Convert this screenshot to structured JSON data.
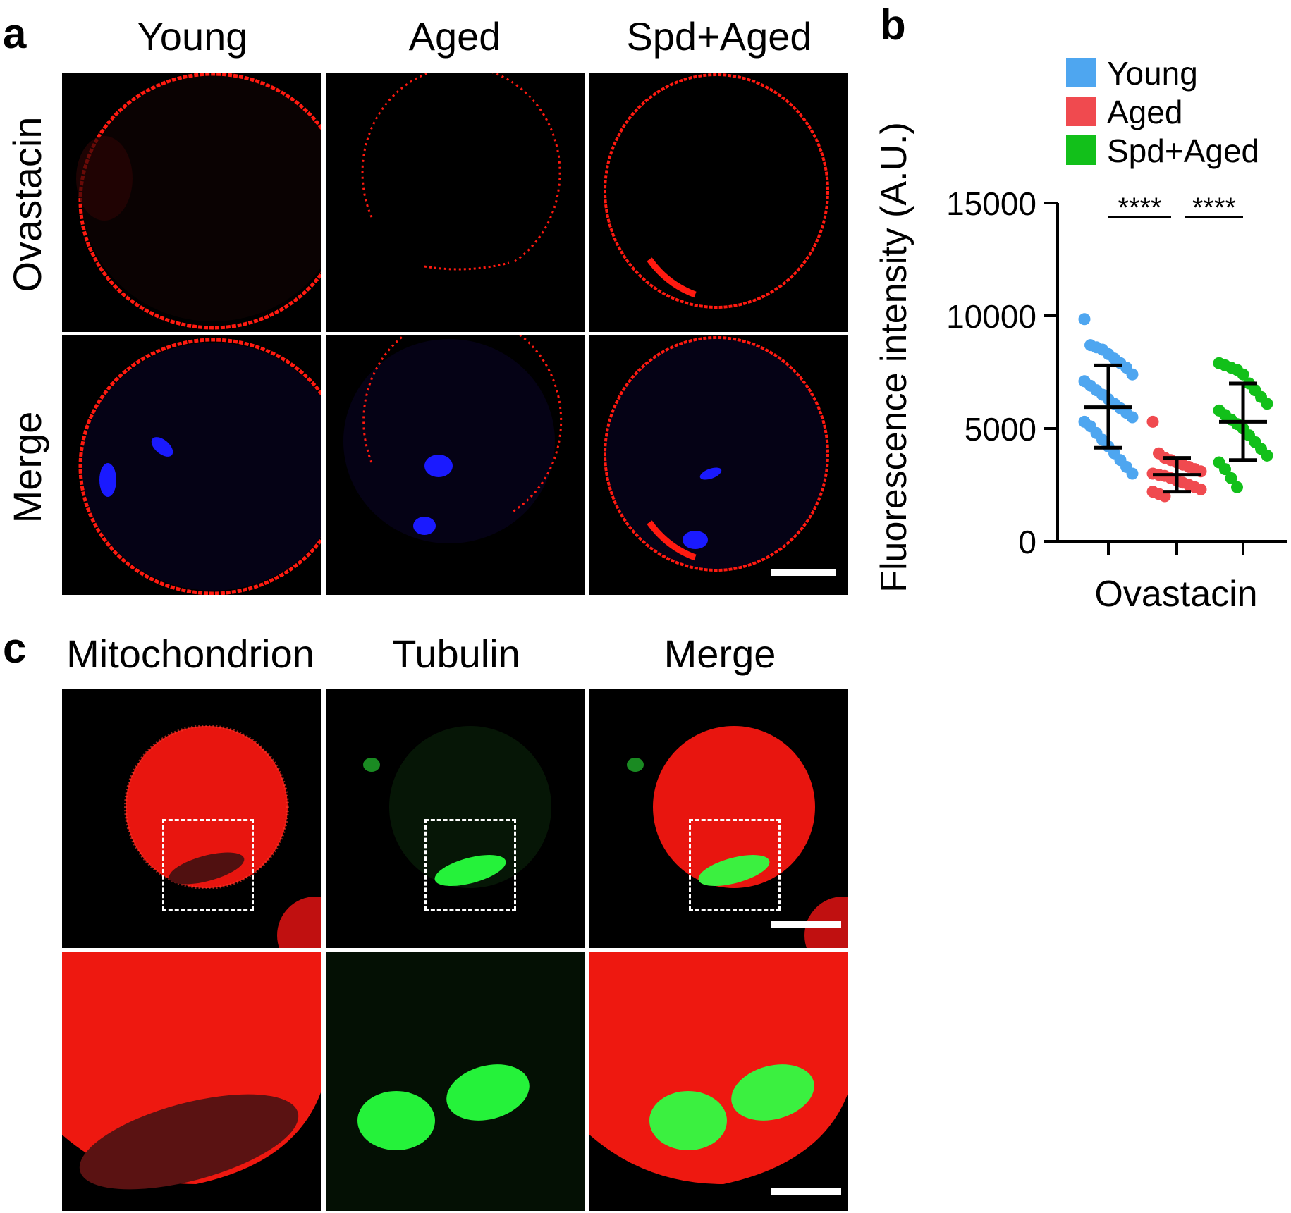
{
  "panels": {
    "a": {
      "letter": "a",
      "columns": [
        "Young",
        "Aged",
        "Spd+Aged"
      ],
      "rows": [
        "Ovastacin",
        "Merge"
      ]
    },
    "b": {
      "letter": "b"
    },
    "c": {
      "letter": "c",
      "columns": [
        "Mitochondrion",
        "Tubulin",
        "Merge"
      ]
    }
  },
  "colors": {
    "young": "#4ea6f0",
    "aged": "#f04a4f",
    "spd_aged": "#12c01a",
    "stain_red": "#ff1a10",
    "stain_blue": "#1a1aff",
    "stain_green": "#25f23a"
  },
  "chart_data": {
    "type": "scatter",
    "ylabel": "Fluorescence intensity (A.U.)",
    "xlabel": "Ovastacin",
    "ylim": [
      0,
      15000
    ],
    "yticks": [
      0,
      5000,
      10000,
      15000
    ],
    "ytick_labels": [
      "0",
      "5000",
      "10000",
      "15000"
    ],
    "legend": [
      "Young",
      "Aged",
      "Spd+Aged"
    ],
    "legend_position": "top-right",
    "significance": [
      "****",
      "****"
    ],
    "series": [
      {
        "name": "Young",
        "color": "#4ea6f0",
        "mean": 5950,
        "sd_low": 4150,
        "sd_high": 7800,
        "values": [
          9850,
          8700,
          8600,
          8500,
          8300,
          8100,
          7900,
          7700,
          7400,
          7100,
          6900,
          6700,
          6500,
          6300,
          6100,
          5900,
          5700,
          5500,
          5300,
          5100,
          4800,
          4500,
          4200,
          3900,
          3600,
          3300,
          3000
        ]
      },
      {
        "name": "Aged",
        "color": "#f04a4f",
        "mean": 2950,
        "sd_low": 2200,
        "sd_high": 3700,
        "values": [
          5300,
          3900,
          3700,
          3600,
          3500,
          3400,
          3300,
          3200,
          3100,
          3000,
          2950,
          2900,
          2800,
          2700,
          2600,
          2500,
          2400,
          2300,
          2200,
          2100,
          2000
        ]
      },
      {
        "name": "Spd+Aged",
        "color": "#12c01a",
        "mean": 5300,
        "sd_low": 3600,
        "sd_high": 7000,
        "values": [
          7900,
          7800,
          7700,
          7600,
          7400,
          7000,
          6700,
          6400,
          6100,
          5800,
          5600,
          5400,
          5200,
          5000,
          4700,
          4400,
          4100,
          3800,
          3500,
          3200,
          2800,
          2400
        ]
      }
    ]
  }
}
